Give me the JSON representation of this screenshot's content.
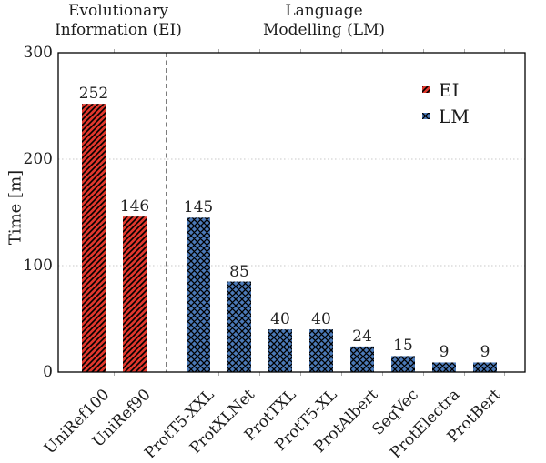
{
  "chart_data": {
    "type": "bar",
    "ylabel": "Time [m]",
    "ylim": [
      0,
      300
    ],
    "yticks": [
      0,
      100,
      200,
      300
    ],
    "grid": "horizontal dotted gridlines at 100 and 200",
    "legend_position": "upper right, no frame",
    "group_headers": {
      "ei": {
        "line1": "Evolutionary",
        "line2": "Information (EI)"
      },
      "lm": {
        "line1": "Language",
        "line2": "Modelling (LM)"
      }
    },
    "separator": "vertical dashed line between EI and LM bar groups",
    "legend": [
      {
        "label": "EI",
        "color": "#e0372c",
        "hatch": "diagonal"
      },
      {
        "label": "LM",
        "color": "#4b79b7",
        "hatch": "cross"
      }
    ],
    "bars": [
      {
        "category": "UniRef100",
        "value": 252,
        "group": "EI"
      },
      {
        "category": "UniRef90",
        "value": 146,
        "group": "EI"
      },
      {
        "category": "ProtT5-XXL",
        "value": 145,
        "group": "LM"
      },
      {
        "category": "ProtXLNet",
        "value": 85,
        "group": "LM"
      },
      {
        "category": "ProtTXL",
        "value": 40,
        "group": "LM"
      },
      {
        "category": "ProtT5-XL",
        "value": 40,
        "group": "LM"
      },
      {
        "category": "ProtAlbert",
        "value": 24,
        "group": "LM"
      },
      {
        "category": "SeqVec",
        "value": 15,
        "group": "LM"
      },
      {
        "category": "ProtElectra",
        "value": 9,
        "group": "LM"
      },
      {
        "category": "ProtBert",
        "value": 9,
        "group": "LM"
      }
    ],
    "colors": {
      "ei_bar": "#e0372c",
      "lm_bar": "#4b79b7",
      "hatch": "#000000",
      "gridline": "#c8c8c8",
      "spine": "#000000"
    }
  }
}
